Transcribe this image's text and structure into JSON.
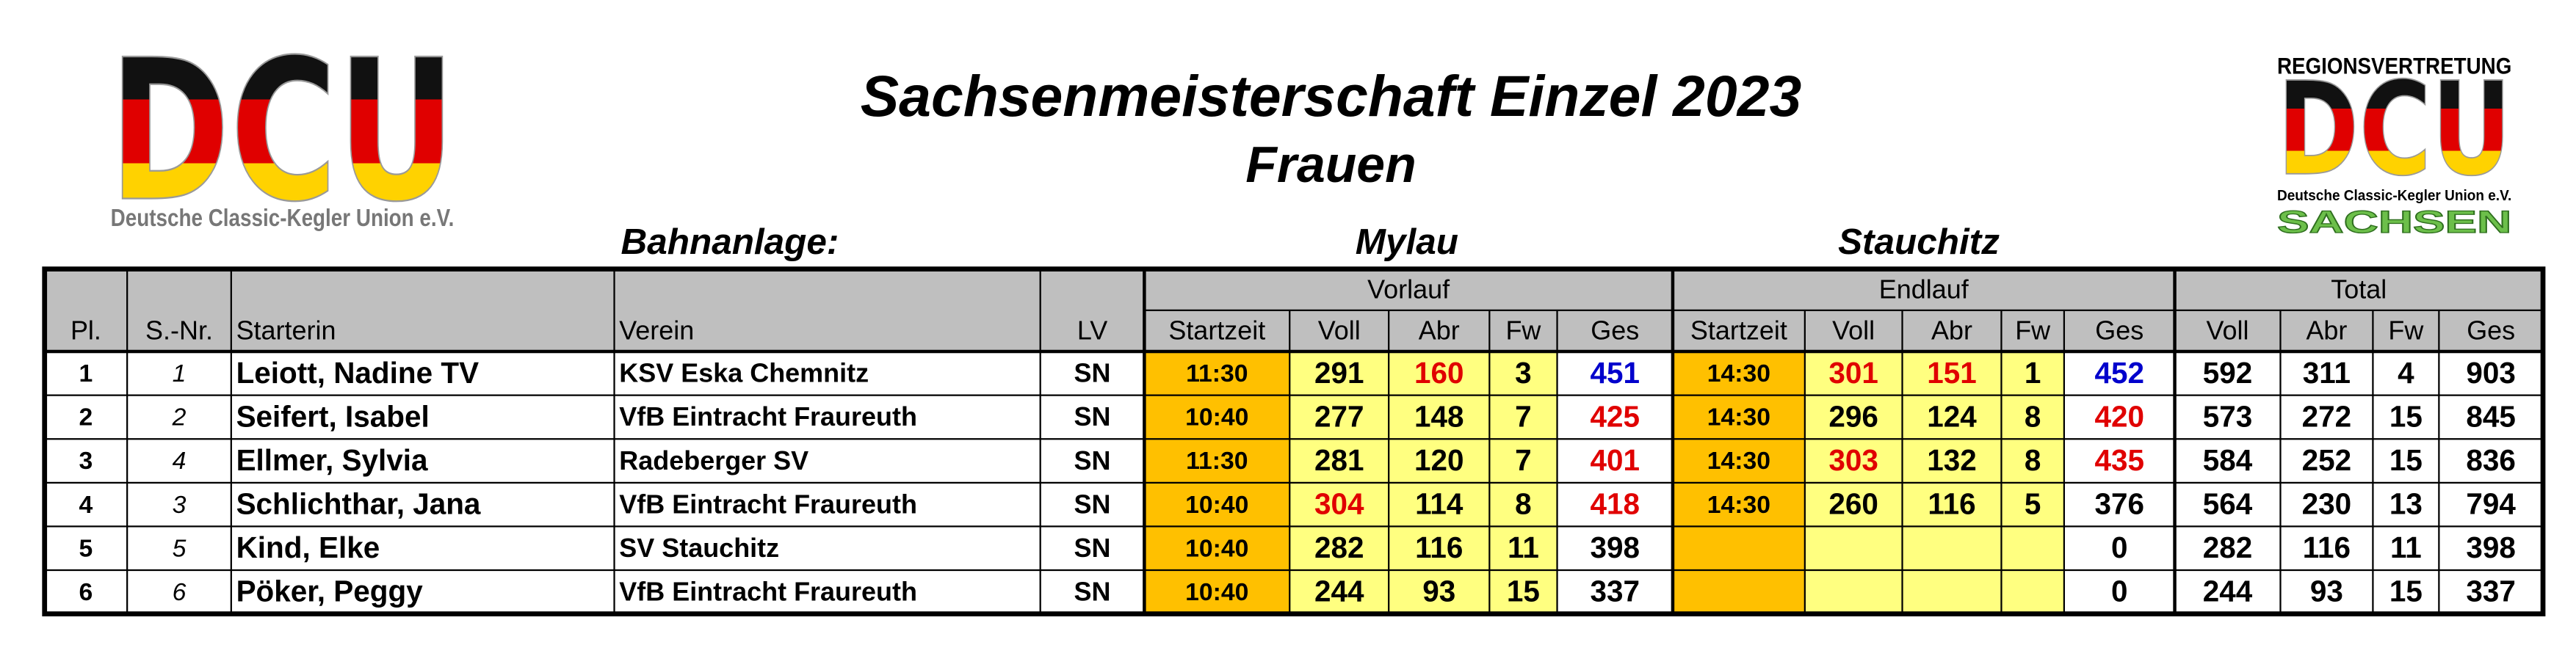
{
  "header": {
    "title": "Sachsenmeisterschaft Einzel 2023",
    "subtitle": "Frauen",
    "venue_label": "Bahnanlage:",
    "venue_1": "Mylau",
    "venue_2": "Stauchitz"
  },
  "logo_left": {
    "mark": "DCU",
    "caption": "Deutsche Classic-Kegler Union e.V."
  },
  "logo_right": {
    "top": "REGIONSVERTRETUNG",
    "mark": "DCU",
    "caption": "Deutsche Classic-Kegler Union e.V.",
    "bottom": "SACHSEN"
  },
  "table": {
    "groups": [
      "Vorlauf",
      "Endlauf",
      "Total"
    ],
    "columns": [
      "Pl.",
      "S.-Nr.",
      "Starterin",
      "Verein",
      "LV",
      "Startzeit",
      "Voll",
      "Abr",
      "Fw",
      "Ges",
      "Startzeit",
      "Voll",
      "Abr",
      "Fw",
      "Ges",
      "Voll",
      "Abr",
      "Fw",
      "Ges"
    ],
    "rows": [
      [
        1,
        1,
        "Leiott, Nadine TV",
        "KSV Eska Chemnitz",
        "SN",
        "11:30",
        291,
        160,
        3,
        451,
        "14:30",
        301,
        151,
        1,
        452,
        592,
        311,
        4,
        903
      ],
      [
        2,
        2,
        "Seifert, Isabel",
        "VfB Eintracht Fraureuth",
        "SN",
        "10:40",
        277,
        148,
        7,
        425,
        "14:30",
        296,
        124,
        8,
        420,
        573,
        272,
        15,
        845
      ],
      [
        3,
        4,
        "Ellmer, Sylvia",
        "Radeberger SV",
        "SN",
        "11:30",
        281,
        120,
        7,
        401,
        "14:30",
        303,
        132,
        8,
        435,
        584,
        252,
        15,
        836
      ],
      [
        4,
        3,
        "Schlichthar, Jana",
        "VfB Eintracht Fraureuth",
        "SN",
        "10:40",
        304,
        114,
        8,
        418,
        "14:30",
        260,
        116,
        5,
        376,
        564,
        230,
        13,
        794
      ],
      [
        5,
        5,
        "Kind, Elke",
        "SV Stauchitz",
        "SN",
        "10:40",
        282,
        116,
        11,
        398,
        null,
        null,
        null,
        null,
        0,
        282,
        116,
        11,
        398
      ],
      [
        6,
        6,
        "Pöker, Peggy",
        "VfB Eintracht Fraureuth",
        "SN",
        "10:40",
        244,
        93,
        15,
        337,
        null,
        null,
        null,
        null,
        0,
        244,
        93,
        15,
        337
      ]
    ]
  }
}
